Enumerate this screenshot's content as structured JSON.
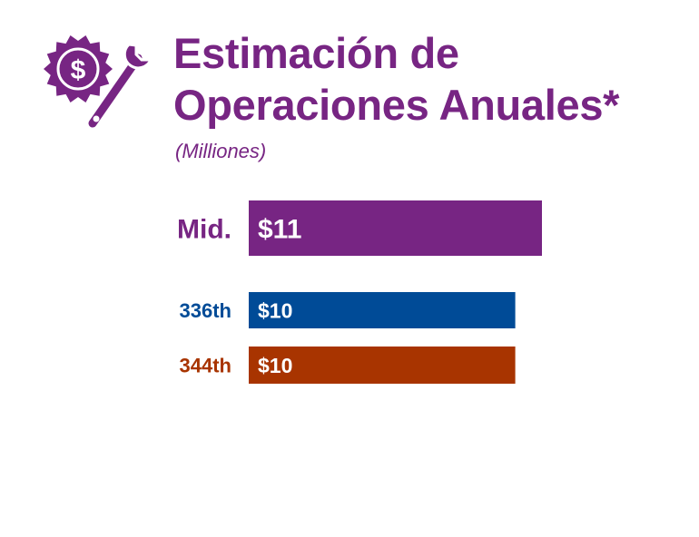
{
  "title_line1": "Estimación de",
  "title_line2": "Operaciones Anuales*",
  "subtitle": "(Milliones)",
  "icon": "dollar-gear-wrench-icon",
  "colors": {
    "title": "#772583",
    "icon": "#772583",
    "subtitle": "#772583"
  },
  "chart_data": {
    "type": "bar",
    "orientation": "horizontal",
    "categories": [
      "Mid.",
      "336th",
      "344th"
    ],
    "values": [
      11,
      10,
      10
    ],
    "value_labels": [
      "$11",
      "$10",
      "$10"
    ],
    "colors": [
      "#772583",
      "#004b97",
      "#a83400"
    ],
    "xlim": [
      0,
      11
    ],
    "grid": false,
    "legend": "none"
  }
}
